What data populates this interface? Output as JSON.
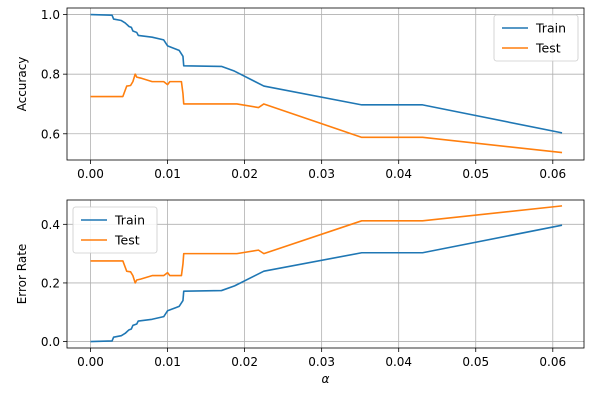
{
  "chart_data": [
    {
      "type": "line",
      "id": "top",
      "xlabel": "",
      "ylabel": "Accuracy",
      "xlim": [
        -0.00305,
        0.06405
      ],
      "ylim": [
        0.512,
        1.022
      ],
      "xticks": [
        0.0,
        0.01,
        0.02,
        0.03,
        0.04,
        0.05,
        0.06
      ],
      "xtick_labels": [
        "0.00",
        "0.01",
        "0.02",
        "0.03",
        "0.04",
        "0.05",
        "0.06"
      ],
      "yticks": [
        0.6,
        0.8,
        1.0
      ],
      "ytick_labels": [
        "0.6",
        "0.8",
        "1.0"
      ],
      "grid": true,
      "legend": {
        "placement": "upper-right"
      },
      "series": [
        {
          "name": "Train",
          "color": "#1f77b4",
          "points": [
            [
              0,
              1.0
            ],
            [
              0.0028,
              0.998
            ],
            [
              0.003,
              0.985
            ],
            [
              0.004,
              0.98
            ],
            [
              0.0045,
              0.972
            ],
            [
              0.005,
              0.96
            ],
            [
              0.0053,
              0.957
            ],
            [
              0.0055,
              0.945
            ],
            [
              0.006,
              0.94
            ],
            [
              0.0062,
              0.93
            ],
            [
              0.008,
              0.924
            ],
            [
              0.0095,
              0.915
            ],
            [
              0.01,
              0.895
            ],
            [
              0.011,
              0.885
            ],
            [
              0.0115,
              0.88
            ],
            [
              0.012,
              0.86
            ],
            [
              0.0121,
              0.828
            ],
            [
              0.017,
              0.826
            ],
            [
              0.0187,
              0.81
            ],
            [
              0.0225,
              0.76
            ],
            [
              0.0352,
              0.697
            ],
            [
              0.0431,
              0.697
            ],
            [
              0.0612,
              0.603
            ]
          ]
        },
        {
          "name": "Test",
          "color": "#ff7f0e",
          "points": [
            [
              0,
              0.725
            ],
            [
              0.0042,
              0.725
            ],
            [
              0.0047,
              0.76
            ],
            [
              0.0052,
              0.762
            ],
            [
              0.0055,
              0.775
            ],
            [
              0.0058,
              0.8
            ],
            [
              0.006,
              0.79
            ],
            [
              0.0065,
              0.787
            ],
            [
              0.008,
              0.775
            ],
            [
              0.0095,
              0.775
            ],
            [
              0.01,
              0.765
            ],
            [
              0.0103,
              0.775
            ],
            [
              0.0118,
              0.775
            ],
            [
              0.012,
              0.735
            ],
            [
              0.0121,
              0.7
            ],
            [
              0.019,
              0.7
            ],
            [
              0.0218,
              0.688
            ],
            [
              0.0225,
              0.7
            ],
            [
              0.0352,
              0.588
            ],
            [
              0.0431,
              0.588
            ],
            [
              0.0612,
              0.537
            ]
          ]
        }
      ]
    },
    {
      "type": "line",
      "id": "bottom",
      "xlabel": "α",
      "ylabel": "Error Rate",
      "xlim": [
        -0.00305,
        0.06405
      ],
      "ylim": [
        -0.022,
        0.483
      ],
      "xticks": [
        0.0,
        0.01,
        0.02,
        0.03,
        0.04,
        0.05,
        0.06
      ],
      "xtick_labels": [
        "0.00",
        "0.01",
        "0.02",
        "0.03",
        "0.04",
        "0.05",
        "0.06"
      ],
      "yticks": [
        0.0,
        0.2,
        0.4
      ],
      "ytick_labels": [
        "0.0",
        "0.2",
        "0.4"
      ],
      "grid": true,
      "legend": {
        "placement": "upper-left"
      },
      "series": [
        {
          "name": "Train",
          "color": "#1f77b4",
          "points": [
            [
              0,
              0.0
            ],
            [
              0.0028,
              0.002
            ],
            [
              0.003,
              0.015
            ],
            [
              0.004,
              0.02
            ],
            [
              0.0045,
              0.028
            ],
            [
              0.005,
              0.04
            ],
            [
              0.0053,
              0.043
            ],
            [
              0.0055,
              0.055
            ],
            [
              0.006,
              0.06
            ],
            [
              0.0062,
              0.07
            ],
            [
              0.008,
              0.076
            ],
            [
              0.0095,
              0.085
            ],
            [
              0.01,
              0.105
            ],
            [
              0.011,
              0.115
            ],
            [
              0.0115,
              0.12
            ],
            [
              0.012,
              0.14
            ],
            [
              0.0121,
              0.172
            ],
            [
              0.017,
              0.174
            ],
            [
              0.0187,
              0.19
            ],
            [
              0.0225,
              0.24
            ],
            [
              0.0352,
              0.303
            ],
            [
              0.0431,
              0.303
            ],
            [
              0.0612,
              0.397
            ]
          ]
        },
        {
          "name": "Test",
          "color": "#ff7f0e",
          "points": [
            [
              0,
              0.275
            ],
            [
              0.0042,
              0.275
            ],
            [
              0.0047,
              0.24
            ],
            [
              0.0052,
              0.238
            ],
            [
              0.0055,
              0.225
            ],
            [
              0.0058,
              0.2
            ],
            [
              0.006,
              0.21
            ],
            [
              0.0065,
              0.213
            ],
            [
              0.008,
              0.225
            ],
            [
              0.0095,
              0.225
            ],
            [
              0.01,
              0.235
            ],
            [
              0.0103,
              0.225
            ],
            [
              0.0118,
              0.225
            ],
            [
              0.012,
              0.265
            ],
            [
              0.0121,
              0.3
            ],
            [
              0.019,
              0.3
            ],
            [
              0.0218,
              0.312
            ],
            [
              0.0225,
              0.3
            ],
            [
              0.0352,
              0.412
            ],
            [
              0.0431,
              0.412
            ],
            [
              0.0612,
              0.463
            ]
          ]
        }
      ]
    }
  ]
}
